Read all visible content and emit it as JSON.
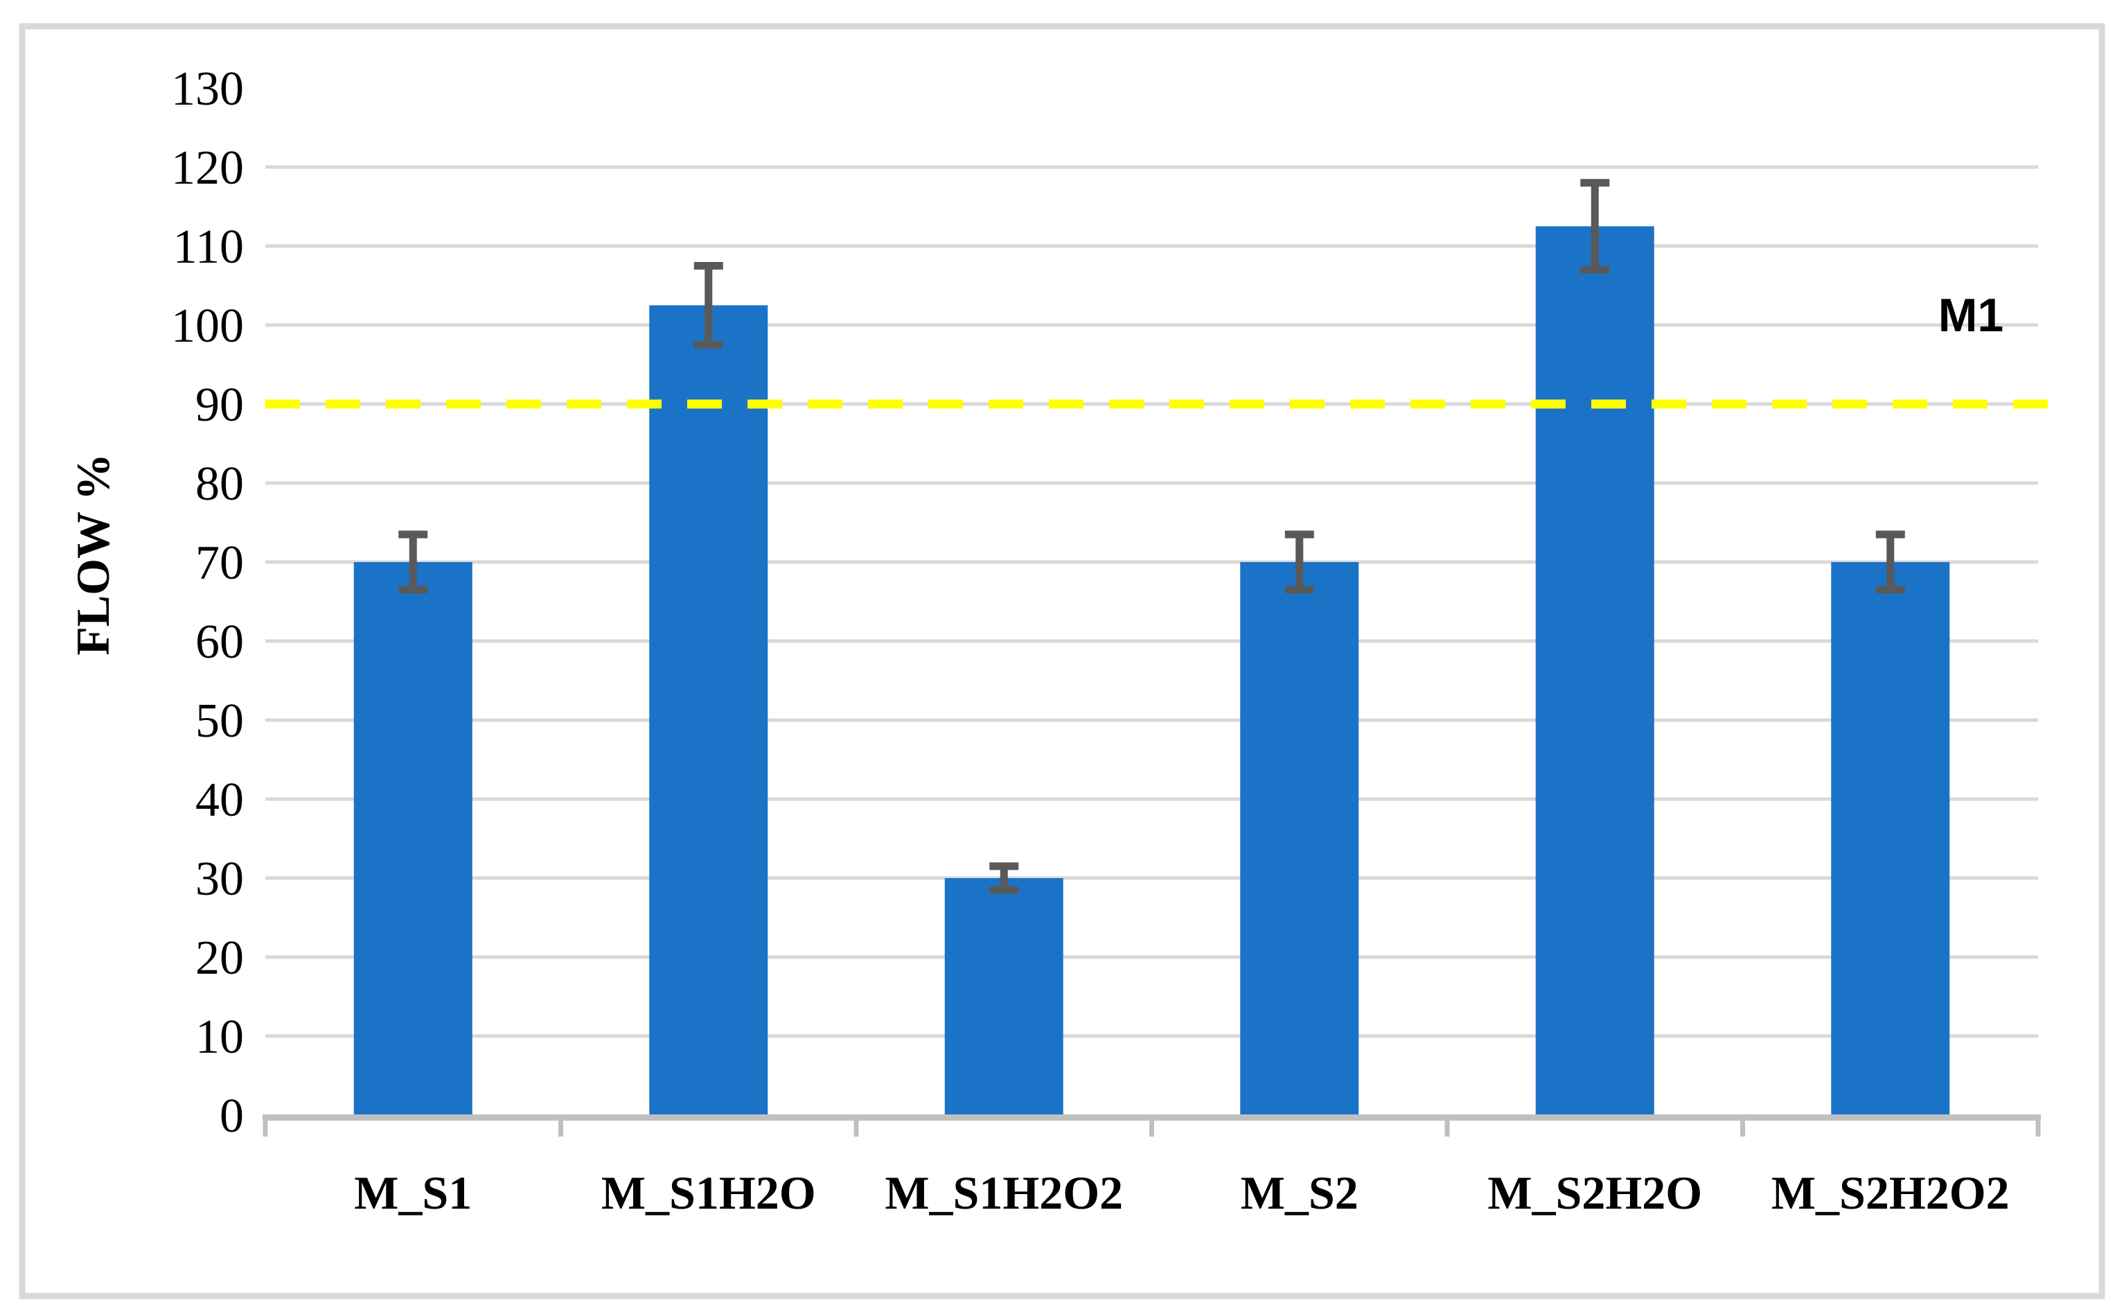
{
  "figure": {
    "description": "bar chart of flow percentage for six membrane samples with error bars and reference line"
  },
  "chart_data": {
    "type": "bar",
    "title": "",
    "categories": [
      "M_S1",
      "M_S1H2O",
      "M_S1H2O2",
      "M_S2",
      "M_S2H2O",
      "M_S2H2O2"
    ],
    "values": [
      70,
      102.5,
      30,
      70,
      112.5,
      70
    ],
    "error_bars": [
      3.5,
      5,
      1.5,
      3.5,
      5.5,
      3.5
    ],
    "xlabel": "",
    "ylabel": "FLOW %",
    "ylim": [
      0,
      130
    ],
    "ytick_step": 10,
    "ytick_labels": [
      "0",
      "10",
      "20",
      "30",
      "40",
      "50",
      "60",
      "70",
      "80",
      "90",
      "100",
      "110",
      "120",
      "130"
    ],
    "grid": "horizontal-gridlines-10-to-120",
    "legend_position": "none",
    "reference_line": {
      "label": "M1",
      "value": 90,
      "style": "dashed",
      "color": "#FFFF00"
    },
    "colors": {
      "bar": "#1B73C8",
      "error_bar": "#595959",
      "gridline": "#D9D9D9",
      "axis_line": "#BFBFBF",
      "figure_border": "#D9D9D9",
      "text": "#000000",
      "background": "#FFFFFF"
    }
  }
}
